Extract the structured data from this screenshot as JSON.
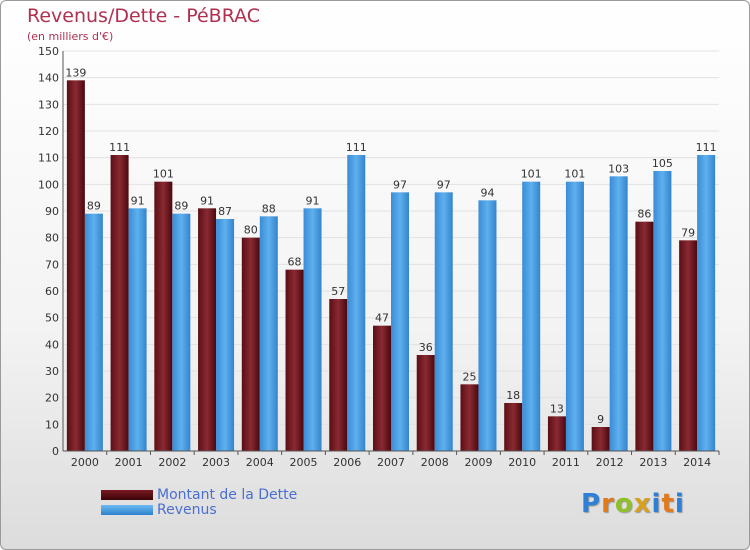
{
  "chart_data": {
    "type": "bar",
    "title": "Revenus/Dette - PéBRAC",
    "subtitle": "(en milliers d'€)",
    "xlabel": "",
    "ylabel": "",
    "ylim": [
      0,
      150
    ],
    "ytick_step": 10,
    "grid": true,
    "legend_position": "bottom-left",
    "categories": [
      "2000",
      "2001",
      "2002",
      "2003",
      "2004",
      "2005",
      "2006",
      "2007",
      "2008",
      "2009",
      "2010",
      "2011",
      "2012",
      "2013",
      "2014"
    ],
    "series": [
      {
        "name": "Montant de la Dette",
        "color": "#7a1a22",
        "values": [
          139,
          111,
          101,
          91,
          80,
          68,
          57,
          47,
          36,
          25,
          18,
          13,
          9,
          86,
          79
        ]
      },
      {
        "name": "Revenus",
        "color": "#4aa0e6",
        "values": [
          89,
          91,
          89,
          87,
          88,
          91,
          111,
          97,
          97,
          94,
          101,
          101,
          103,
          105,
          111
        ]
      }
    ]
  },
  "logo": {
    "text": "Proxiti",
    "letter_colors": [
      "#2e7fd6",
      "#e07a1a",
      "#8fbf2a",
      "#d8a020",
      "#2e7fd6",
      "#e07a1a",
      "#2e7fd6"
    ]
  }
}
